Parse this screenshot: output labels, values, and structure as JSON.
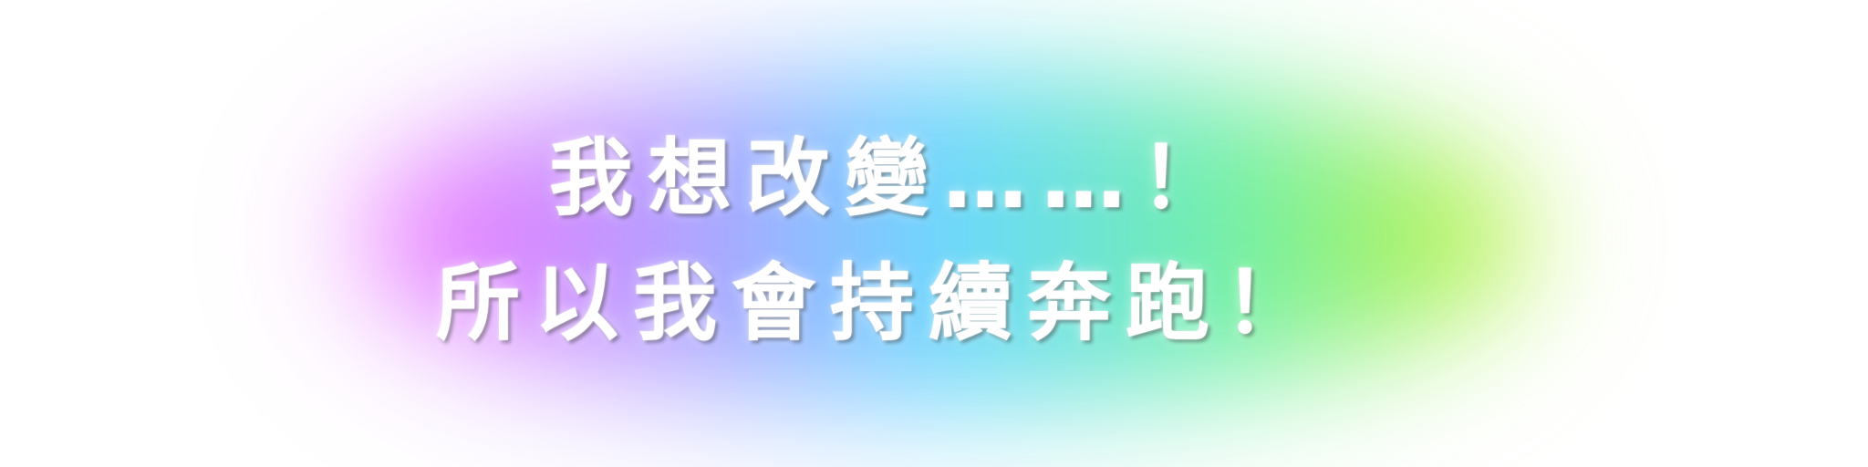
{
  "headline": {
    "line1": "我想改變……！",
    "line2": "所以我會持續奔跑！"
  },
  "colors": {
    "background": "#ffffff",
    "text": "#ffffff",
    "glow_gradient": [
      "#f36cff",
      "#b69cff",
      "#66d8ff",
      "#6ef0a5",
      "#c5f23c"
    ]
  }
}
